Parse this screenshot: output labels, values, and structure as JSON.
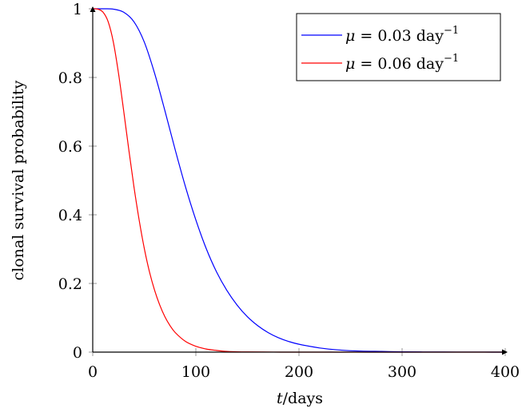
{
  "chart_data": {
    "type": "line",
    "title": "",
    "xlabel_var": "t",
    "xlabel_unit": "/days",
    "ylabel": "clonal survival probability",
    "xlim": [
      0,
      400
    ],
    "ylim": [
      0,
      1
    ],
    "xticks": [
      0,
      100,
      200,
      300,
      400
    ],
    "xtick_labels": [
      "0",
      "100",
      "200",
      "300",
      "400"
    ],
    "yticks": [
      0,
      0.2,
      0.4,
      0.6,
      0.8,
      1
    ],
    "ytick_labels": [
      "0",
      "0.2",
      "0.4",
      "0.6",
      "0.8",
      "1"
    ],
    "grid": false,
    "legend_position": "top-right",
    "series": [
      {
        "name": "μ = 0.03 day⁻¹",
        "legend_symbol": "μ",
        "legend_value": " = 0.03 day",
        "legend_exp": "−1",
        "color": "#0000ff",
        "x": [
          0,
          10,
          20,
          30,
          40,
          50,
          60,
          70,
          80,
          90,
          100,
          110,
          120,
          130,
          140,
          150,
          160,
          170,
          180,
          190,
          200,
          220,
          240,
          260,
          280,
          300,
          320,
          340,
          360,
          380,
          400
        ],
        "values": [
          1.0,
          1.0,
          0.999,
          0.99,
          0.962,
          0.903,
          0.812,
          0.703,
          0.589,
          0.481,
          0.385,
          0.302,
          0.234,
          0.18,
          0.137,
          0.103,
          0.077,
          0.057,
          0.042,
          0.031,
          0.023,
          0.012,
          0.006,
          0.003,
          0.002,
          0.001,
          0.0005,
          0.0002,
          0.0001,
          0.0001,
          0.0
        ]
      },
      {
        "name": "μ = 0.06 day⁻¹",
        "legend_symbol": "μ",
        "legend_value": " = 0.06 day",
        "legend_exp": "−1",
        "color": "#ff0000",
        "x": [
          0,
          5,
          10,
          15,
          20,
          25,
          30,
          35,
          40,
          45,
          50,
          55,
          60,
          65,
          70,
          75,
          80,
          90,
          100,
          110,
          120,
          130,
          140,
          150,
          175,
          200,
          250,
          300,
          350,
          400
        ],
        "values": [
          1.0,
          0.999,
          0.99,
          0.962,
          0.903,
          0.812,
          0.703,
          0.589,
          0.481,
          0.385,
          0.302,
          0.234,
          0.18,
          0.137,
          0.103,
          0.077,
          0.057,
          0.031,
          0.017,
          0.009,
          0.005,
          0.002,
          0.001,
          0.0006,
          0.0001,
          0.0,
          0.0,
          0.0,
          0.0,
          0.0
        ]
      }
    ]
  }
}
